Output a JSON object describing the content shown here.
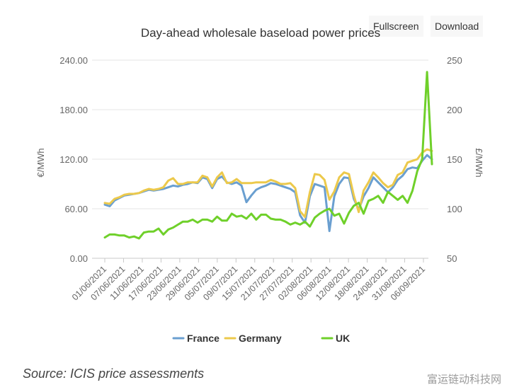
{
  "toolbar": {
    "fullscreen_label": "Fullscreen",
    "download_label": "Download"
  },
  "chart_data": {
    "type": "line",
    "title": "Day-ahead wholesale baseload power prices",
    "ylabel_left": "€/MWh",
    "ylabel_right": "£/MWh",
    "ylim_left": [
      0,
      240
    ],
    "ylim_right": [
      50,
      250
    ],
    "yticks_left": [
      "0.00",
      "60.00",
      "120.00",
      "180.00",
      "240.00"
    ],
    "yticks_right": [
      "50",
      "100",
      "150",
      "200",
      "250"
    ],
    "x_ticks": [
      "01/06/2021",
      "07/06/2021",
      "11/06/2021",
      "17/06/2021",
      "23/06/2021",
      "29/06/2021",
      "05/07/2021",
      "09/07/2021",
      "15/07/2021",
      "21/07/2021",
      "27/07/2021",
      "02/08/2021",
      "06/08/2021",
      "12/08/2021",
      "18/08/2021",
      "24/08/2021",
      "31/08/2021",
      "06/09/2021"
    ],
    "legend_position": "bottom",
    "series": [
      {
        "name": "France",
        "axis": "left",
        "color": "#6a9fd0",
        "values": [
          65,
          63,
          70,
          73,
          76,
          77,
          78,
          79,
          81,
          83,
          82,
          83,
          84,
          86,
          88,
          87,
          89,
          90,
          92,
          91,
          98,
          96,
          85,
          96,
          99,
          92,
          90,
          92,
          88,
          68,
          76,
          83,
          86,
          88,
          91,
          90,
          88,
          86,
          84,
          80,
          52,
          43,
          75,
          90,
          88,
          86,
          33,
          75,
          90,
          98,
          97,
          72,
          59,
          75,
          85,
          98,
          92,
          86,
          80,
          86,
          95,
          100,
          108,
          110,
          109,
          118,
          125,
          120
        ]
      },
      {
        "name": "Germany",
        "axis": "left",
        "color": "#ecc94b",
        "values": [
          67,
          66,
          72,
          74,
          77,
          78,
          78,
          79,
          82,
          84,
          83,
          84,
          86,
          94,
          97,
          90,
          90,
          92,
          92,
          92,
          100,
          98,
          87,
          98,
          104,
          91,
          92,
          96,
          91,
          91,
          91,
          92,
          92,
          92,
          95,
          93,
          90,
          90,
          91,
          85,
          57,
          50,
          80,
          102,
          101,
          95,
          71,
          81,
          98,
          104,
          102,
          76,
          56,
          82,
          92,
          104,
          98,
          91,
          86,
          89,
          101,
          104,
          116,
          118,
          120,
          128,
          132,
          130
        ]
      },
      {
        "name": "UK",
        "axis": "right",
        "color": "#6fd02a",
        "values": [
          71,
          74,
          74,
          73,
          73,
          71,
          72,
          70,
          76,
          77,
          77,
          80,
          74,
          79,
          81,
          84,
          87,
          87,
          89,
          86,
          89,
          89,
          87,
          92,
          88,
          88,
          95,
          92,
          93,
          90,
          95,
          89,
          94,
          94,
          90,
          89,
          89,
          87,
          84,
          86,
          84,
          87,
          82,
          91,
          95,
          98,
          100,
          93,
          95,
          85,
          96,
          103,
          106,
          95,
          108,
          110,
          113,
          106,
          117,
          113,
          109,
          113,
          106,
          118,
          138,
          150,
          238,
          145
        ]
      }
    ]
  }
}
